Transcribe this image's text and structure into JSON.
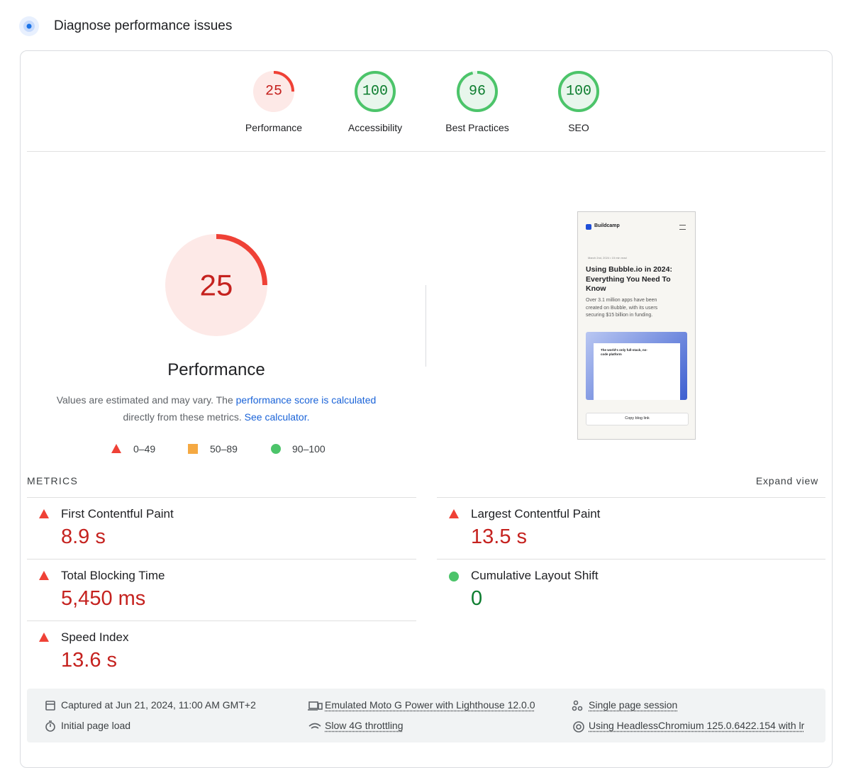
{
  "header": {
    "title": "Diagnose performance issues"
  },
  "categories": [
    {
      "label": "Performance",
      "score": 25,
      "color": "#ef4136",
      "fill": "#fde9e7",
      "text_color": "#c5221f"
    },
    {
      "label": "Accessibility",
      "score": 100,
      "color": "#4cc46a",
      "fill": "#e8f6ec",
      "text_color": "#0d7d2f"
    },
    {
      "label": "Best Practices",
      "score": 96,
      "color": "#4cc46a",
      "fill": "#e8f6ec",
      "text_color": "#0d7d2f"
    },
    {
      "label": "SEO",
      "score": 100,
      "color": "#4cc46a",
      "fill": "#e8f6ec",
      "text_color": "#0d7d2f"
    }
  ],
  "performance": {
    "score": 25,
    "title": "Performance",
    "description": {
      "text1": "Values are estimated and may vary. The",
      "link1": "performance score is calculated",
      "text2": "directly from these metrics.",
      "link2": "See calculator."
    },
    "legend": [
      "0–49",
      "50–89",
      "90–100"
    ]
  },
  "screenshot": {
    "brand": "Buildcamp",
    "meta": "March 2nd, 2024 • 15 min read",
    "heading": "Using Bubble.io in 2024: Everything You Need To Know",
    "summary": "Over 3.1 million apps have been created on Bubble, with its users securing $15 billion in funding.",
    "hero": "The world's only full-stack, no-code platform",
    "button": "Copy blog link"
  },
  "metrics": {
    "title": "METRICS",
    "expand": "Expand view",
    "items": [
      {
        "name": "First Contentful Paint",
        "value": "8.9 s",
        "color": "#c5221f"
      },
      {
        "name": "Largest Contentful Paint",
        "value": "13.5 s",
        "color": "#c5221f"
      },
      {
        "name": "Total Blocking Time",
        "value": "5,450 ms",
        "color": "#c5221f"
      },
      {
        "name": "Cumulative Layout Shift",
        "value": "0",
        "color": "#0d7d2f"
      },
      {
        "name": "Speed Index",
        "value": "13.6 s",
        "color": "#c5221f"
      }
    ]
  },
  "footer": {
    "items": [
      "Captured at Jun 21, 2024, 11:00 AM GMT+2",
      "Emulated Moto G Power with Lighthouse 12.0.0",
      "Single page session",
      "Initial page load",
      "Slow 4G throttling",
      "Using HeadlessChromium 125.0.6422.154 with lr"
    ]
  }
}
